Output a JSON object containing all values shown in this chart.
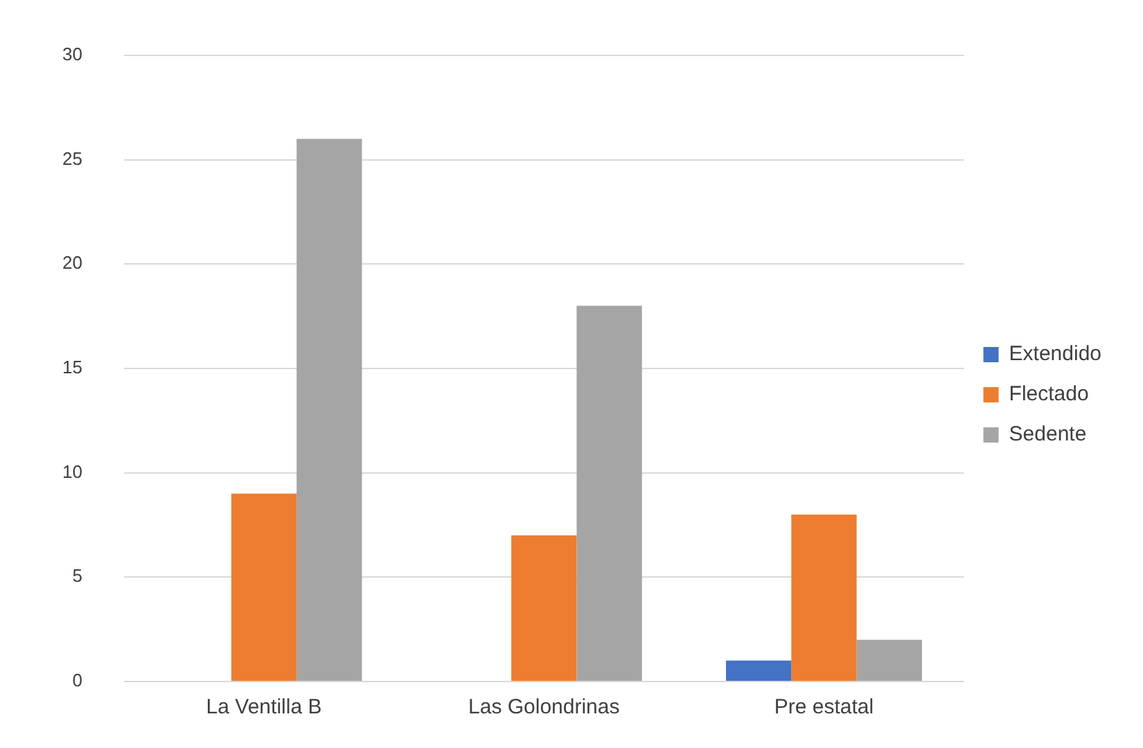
{
  "chart_data": {
    "type": "bar",
    "categories": [
      "La Ventilla B",
      "Las Golondrinas",
      "Pre estatal"
    ],
    "series": [
      {
        "name": "Extendido",
        "color": "#4472c4",
        "values": [
          0,
          0,
          1
        ]
      },
      {
        "name": "Flectado",
        "color": "#ed7d31",
        "values": [
          9,
          7,
          8
        ]
      },
      {
        "name": "Sedente",
        "color": "#a5a5a5",
        "values": [
          26,
          18,
          2
        ]
      }
    ],
    "ylim": [
      0,
      30
    ],
    "yticks": [
      0,
      5,
      10,
      15,
      20,
      25,
      30
    ],
    "grid": "y",
    "legend": "right"
  }
}
